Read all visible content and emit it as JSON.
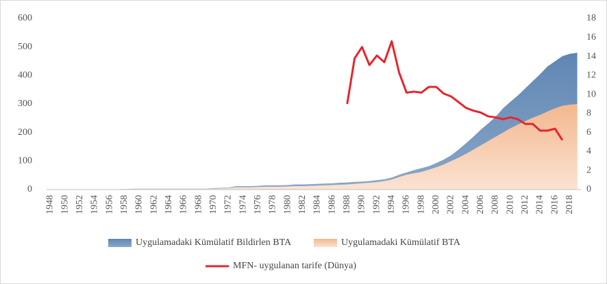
{
  "chart_data": {
    "type": "area-line",
    "categories": [
      "1948",
      null,
      "1950",
      null,
      "1952",
      null,
      "1954",
      null,
      "1956",
      null,
      "1958",
      null,
      "1960",
      null,
      "1962",
      null,
      "1964",
      null,
      "1966",
      null,
      "1968",
      null,
      "1970",
      null,
      "1972",
      null,
      "1974",
      null,
      "1976",
      null,
      "1978",
      null,
      "1980",
      null,
      "1982",
      null,
      "1984",
      null,
      "1986",
      null,
      "1988",
      null,
      "1990",
      null,
      "1992",
      null,
      "1994",
      null,
      "1996",
      null,
      "1998",
      null,
      "2000",
      null,
      "2002",
      null,
      "2004",
      null,
      "2006",
      null,
      "2008",
      null,
      "2010",
      null,
      "2012",
      null,
      "2014",
      null,
      "2016",
      null,
      "2018",
      null
    ],
    "series": [
      {
        "name": "Uygulamadaki Kümülatif Bildirlen BTA",
        "color": "#6b8fb8",
        "kind": "area",
        "values": [
          0,
          0,
          0,
          0,
          1,
          1,
          1,
          1,
          1,
          1,
          2,
          3,
          3,
          3,
          3,
          3,
          3,
          3,
          3,
          3,
          3,
          3,
          5,
          6,
          7,
          12,
          12,
          12,
          13,
          15,
          15,
          15,
          16,
          18,
          18,
          19,
          20,
          21,
          22,
          24,
          25,
          27,
          28,
          30,
          33,
          36,
          42,
          52,
          60,
          68,
          75,
          82,
          93,
          105,
          120,
          140,
          162,
          185,
          210,
          232,
          255,
          285,
          308,
          330,
          355,
          380,
          405,
          432,
          450,
          468,
          476,
          480
        ]
      },
      {
        "name": "Uygulamadaki Kümülatif BTA",
        "color": "#f5c6a2",
        "kind": "area",
        "values": [
          0,
          0,
          0,
          0,
          1,
          1,
          1,
          1,
          1,
          1,
          2,
          2,
          2,
          2,
          2,
          2,
          2,
          2,
          2,
          2,
          2,
          2,
          3,
          4,
          5,
          8,
          8,
          8,
          9,
          10,
          10,
          10,
          11,
          12,
          12,
          13,
          14,
          15,
          16,
          17,
          18,
          20,
          22,
          24,
          26,
          30,
          35,
          44,
          52,
          57,
          62,
          70,
          78,
          88,
          100,
          112,
          125,
          140,
          155,
          170,
          185,
          200,
          215,
          228,
          240,
          252,
          262,
          274,
          285,
          294,
          298,
          300
        ]
      },
      {
        "name": "MFN- uygulanan tarife (Dünya)",
        "color": "#e8242b",
        "kind": "line",
        "axis": "y2",
        "values": [
          null,
          null,
          null,
          null,
          null,
          null,
          null,
          null,
          null,
          null,
          null,
          null,
          null,
          null,
          null,
          null,
          null,
          null,
          null,
          null,
          null,
          null,
          null,
          null,
          null,
          null,
          null,
          null,
          null,
          null,
          null,
          null,
          null,
          null,
          null,
          null,
          null,
          null,
          null,
          null,
          9,
          13.8,
          15,
          13.1,
          14.1,
          13.4,
          15.6,
          12.3,
          10.2,
          10.3,
          10.2,
          10.8,
          10.8,
          10.1,
          9.8,
          9.2,
          8.6,
          8.3,
          8.1,
          7.7,
          7.6,
          7.4,
          7.6,
          7.4,
          6.9,
          6.9,
          6.2,
          6.2,
          6.4,
          5.2,
          null,
          null
        ]
      }
    ],
    "ylim": [
      0,
      600
    ],
    "yticks": [
      0,
      100,
      200,
      300,
      400,
      500,
      600
    ],
    "y2lim": [
      0,
      18
    ],
    "y2ticks": [
      0,
      2,
      4,
      6,
      8,
      10,
      12,
      14,
      16,
      18
    ],
    "legend": "bottom",
    "grid": false
  }
}
